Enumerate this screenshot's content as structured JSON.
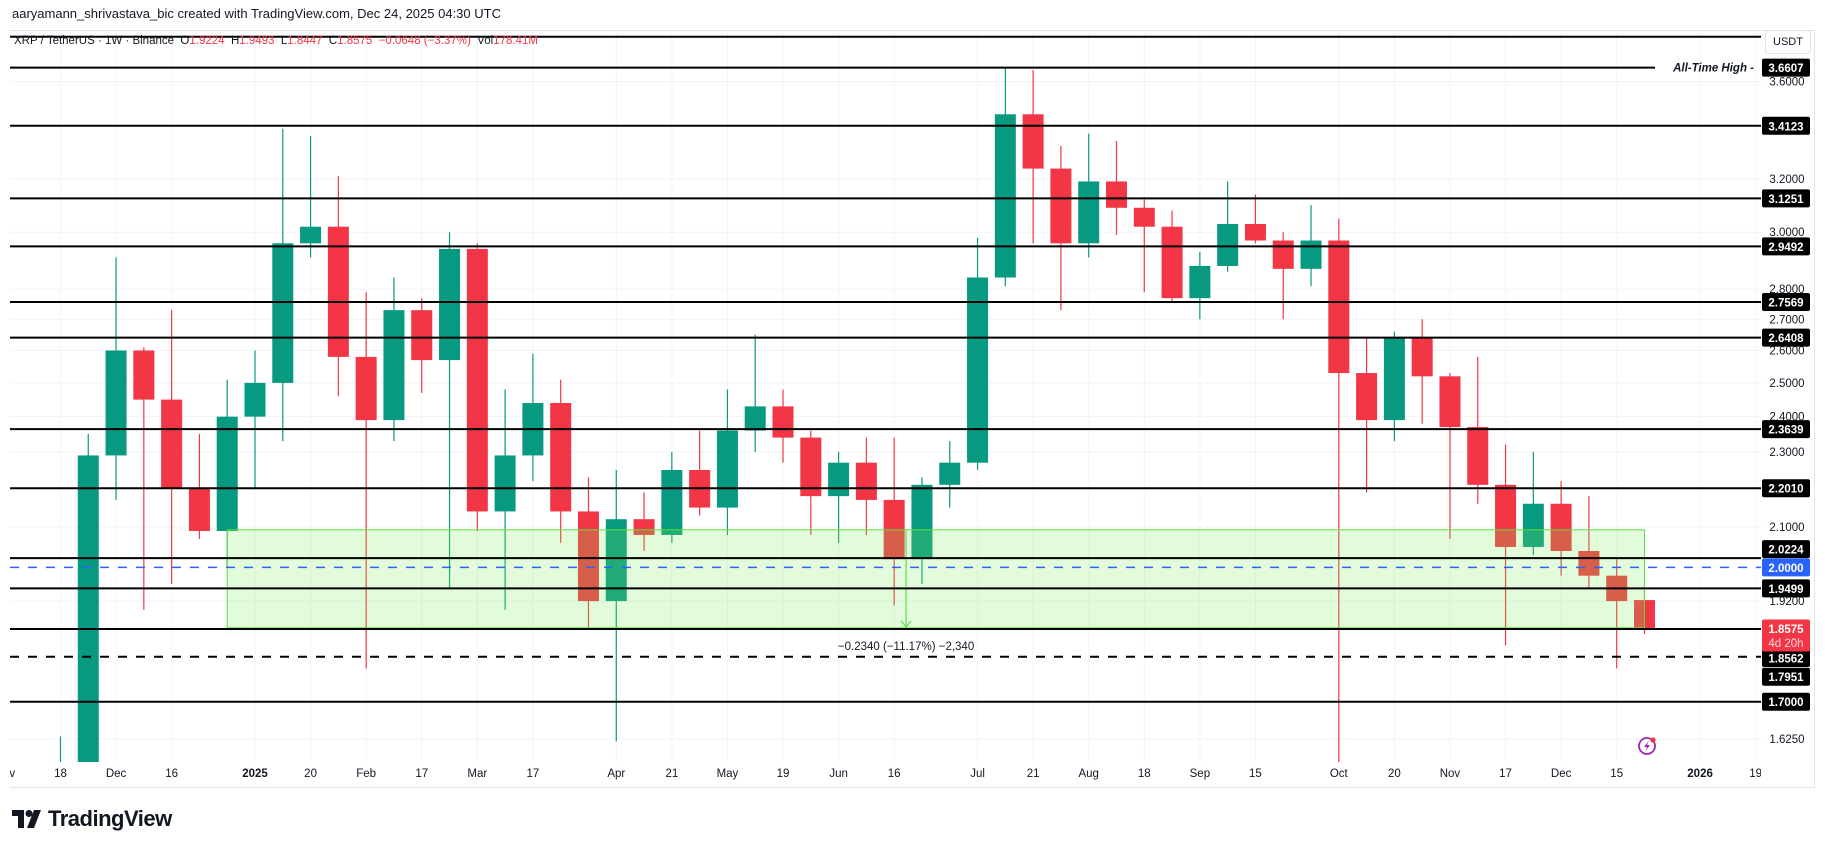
{
  "attribution": "aaryamann_shrivastava_bic created with TradingView.com, Dec 24, 2025 04:30 UTC",
  "legend": {
    "symbol": "XRP / TetherUS · 1W · Binance",
    "o_label": "O",
    "o": "1.9224",
    "h_label": "H",
    "h": "1.9493",
    "l_label": "L",
    "l": "1.8447",
    "c_label": "C",
    "c": "1.8575",
    "change": "−0.0648 (−3.37%)",
    "vol_label": "Vol",
    "vol": "178.41M"
  },
  "currency": "USDT",
  "logo_text": "TradingView",
  "colors": {
    "up": "#089981",
    "down": "#F23645",
    "zone_fill": "rgba(120,235,90,0.22)",
    "zone_border": "#5ee03a",
    "blue_level": "#2962FF",
    "price_label": "#F23645"
  },
  "chart_data": {
    "type": "candlestick",
    "interval": "1W",
    "y_scale": "log",
    "grid": true,
    "ylim": [
      1.588,
      3.8
    ],
    "y_ticks": [
      "3.6000",
      "3.2000",
      "3.0000",
      "2.8000",
      "2.7000",
      "2.6000",
      "2.5000",
      "2.4000",
      "2.3000",
      "2.1000",
      "1.9200",
      "1.6250"
    ],
    "x_ticks": [
      {
        "date": "2024-11-04",
        "label": "Nov"
      },
      {
        "date": "2024-11-18",
        "label": "18"
      },
      {
        "date": "2024-12-02",
        "label": "Dec"
      },
      {
        "date": "2024-12-16",
        "label": "16"
      },
      {
        "date": "2025-01-06",
        "label": "2025",
        "bold": true
      },
      {
        "date": "2025-01-20",
        "label": "20"
      },
      {
        "date": "2025-02-03",
        "label": "Feb"
      },
      {
        "date": "2025-02-17",
        "label": "17"
      },
      {
        "date": "2025-03-03",
        "label": "Mar"
      },
      {
        "date": "2025-03-17",
        "label": "17"
      },
      {
        "date": "2025-04-07",
        "label": "Apr"
      },
      {
        "date": "2025-04-21",
        "label": "21"
      },
      {
        "date": "2025-05-05",
        "label": "May"
      },
      {
        "date": "2025-05-19",
        "label": "19"
      },
      {
        "date": "2025-06-02",
        "label": "Jun"
      },
      {
        "date": "2025-06-16",
        "label": "16"
      },
      {
        "date": "2025-07-07",
        "label": "Jul"
      },
      {
        "date": "2025-07-21",
        "label": "21"
      },
      {
        "date": "2025-08-04",
        "label": "Aug"
      },
      {
        "date": "2025-08-18",
        "label": "18"
      },
      {
        "date": "2025-09-01",
        "label": "Sep"
      },
      {
        "date": "2025-09-15",
        "label": "15"
      },
      {
        "date": "2025-10-06",
        "label": "Oct"
      },
      {
        "date": "2025-10-20",
        "label": "20"
      },
      {
        "date": "2025-11-03",
        "label": "Nov"
      },
      {
        "date": "2025-11-17",
        "label": "17"
      },
      {
        "date": "2025-12-01",
        "label": "Dec"
      },
      {
        "date": "2025-12-15",
        "label": "15"
      },
      {
        "date": "2026-01-05",
        "label": "2026",
        "bold": true
      },
      {
        "date": "2026-01-19",
        "label": "19"
      }
    ],
    "candles": [
      {
        "date": "2024-11-18",
        "o": 1.13,
        "h": 1.63,
        "l": 1.05,
        "c": 1.44
      },
      {
        "date": "2024-11-25",
        "o": 1.44,
        "h": 2.35,
        "l": 1.27,
        "c": 2.29
      },
      {
        "date": "2024-12-02",
        "o": 2.29,
        "h": 2.91,
        "l": 2.17,
        "c": 2.6
      },
      {
        "date": "2024-12-09",
        "o": 2.6,
        "h": 2.61,
        "l": 1.9,
        "c": 2.45
      },
      {
        "date": "2024-12-16",
        "o": 2.45,
        "h": 2.73,
        "l": 1.96,
        "c": 2.2
      },
      {
        "date": "2024-12-23",
        "o": 2.2,
        "h": 2.35,
        "l": 2.07,
        "c": 2.09
      },
      {
        "date": "2024-12-30",
        "o": 2.09,
        "h": 2.51,
        "l": 2.0,
        "c": 2.4
      },
      {
        "date": "2025-01-06",
        "o": 2.4,
        "h": 2.6,
        "l": 2.2,
        "c": 2.5
      },
      {
        "date": "2025-01-13",
        "o": 2.5,
        "h": 3.4,
        "l": 2.33,
        "c": 2.96
      },
      {
        "date": "2025-01-20",
        "o": 2.96,
        "h": 3.37,
        "l": 2.91,
        "c": 3.02
      },
      {
        "date": "2025-01-27",
        "o": 3.02,
        "h": 3.21,
        "l": 2.46,
        "c": 2.58
      },
      {
        "date": "2025-02-03",
        "o": 2.58,
        "h": 2.79,
        "l": 1.77,
        "c": 2.39
      },
      {
        "date": "2025-02-10",
        "o": 2.39,
        "h": 2.84,
        "l": 2.33,
        "c": 2.73
      },
      {
        "date": "2025-02-17",
        "o": 2.73,
        "h": 2.77,
        "l": 2.47,
        "c": 2.57
      },
      {
        "date": "2025-02-24",
        "o": 2.57,
        "h": 3.0,
        "l": 1.95,
        "c": 2.94
      },
      {
        "date": "2025-03-03",
        "o": 2.94,
        "h": 2.96,
        "l": 2.09,
        "c": 2.14
      },
      {
        "date": "2025-03-10",
        "o": 2.14,
        "h": 2.48,
        "l": 1.9,
        "c": 2.29
      },
      {
        "date": "2025-03-17",
        "o": 2.29,
        "h": 2.59,
        "l": 2.22,
        "c": 2.44
      },
      {
        "date": "2025-03-24",
        "o": 2.44,
        "h": 2.51,
        "l": 2.06,
        "c": 2.14
      },
      {
        "date": "2025-03-31",
        "o": 2.14,
        "h": 2.23,
        "l": 1.86,
        "c": 1.92
      },
      {
        "date": "2025-04-07",
        "o": 1.92,
        "h": 2.25,
        "l": 1.62,
        "c": 2.12
      },
      {
        "date": "2025-04-14",
        "o": 2.12,
        "h": 2.19,
        "l": 2.04,
        "c": 2.08
      },
      {
        "date": "2025-04-21",
        "o": 2.08,
        "h": 2.3,
        "l": 2.06,
        "c": 2.25
      },
      {
        "date": "2025-04-28",
        "o": 2.25,
        "h": 2.36,
        "l": 2.13,
        "c": 2.15
      },
      {
        "date": "2025-05-05",
        "o": 2.15,
        "h": 2.48,
        "l": 2.08,
        "c": 2.36
      },
      {
        "date": "2025-05-12",
        "o": 2.36,
        "h": 2.65,
        "l": 2.3,
        "c": 2.43
      },
      {
        "date": "2025-05-19",
        "o": 2.43,
        "h": 2.48,
        "l": 2.27,
        "c": 2.34
      },
      {
        "date": "2025-05-26",
        "o": 2.34,
        "h": 2.36,
        "l": 2.08,
        "c": 2.18
      },
      {
        "date": "2025-06-02",
        "o": 2.18,
        "h": 2.3,
        "l": 2.06,
        "c": 2.27
      },
      {
        "date": "2025-06-09",
        "o": 2.27,
        "h": 2.34,
        "l": 2.08,
        "c": 2.17
      },
      {
        "date": "2025-06-16",
        "o": 2.17,
        "h": 2.34,
        "l": 1.91,
        "c": 2.02
      },
      {
        "date": "2025-06-23",
        "o": 2.02,
        "h": 2.23,
        "l": 1.96,
        "c": 2.21
      },
      {
        "date": "2025-06-30",
        "o": 2.21,
        "h": 2.33,
        "l": 2.15,
        "c": 2.27
      },
      {
        "date": "2025-07-07",
        "o": 2.27,
        "h": 2.98,
        "l": 2.25,
        "c": 2.84
      },
      {
        "date": "2025-07-14",
        "o": 2.84,
        "h": 3.66,
        "l": 2.81,
        "c": 3.46
      },
      {
        "date": "2025-07-21",
        "o": 3.46,
        "h": 3.65,
        "l": 2.96,
        "c": 3.24
      },
      {
        "date": "2025-07-28",
        "o": 3.24,
        "h": 3.33,
        "l": 2.73,
        "c": 2.96
      },
      {
        "date": "2025-08-04",
        "o": 2.96,
        "h": 3.38,
        "l": 2.91,
        "c": 3.19
      },
      {
        "date": "2025-08-11",
        "o": 3.19,
        "h": 3.35,
        "l": 2.99,
        "c": 3.09
      },
      {
        "date": "2025-08-18",
        "o": 3.09,
        "h": 3.13,
        "l": 2.79,
        "c": 3.02
      },
      {
        "date": "2025-08-25",
        "o": 3.02,
        "h": 3.08,
        "l": 2.76,
        "c": 2.77
      },
      {
        "date": "2025-09-01",
        "o": 2.77,
        "h": 2.93,
        "l": 2.7,
        "c": 2.88
      },
      {
        "date": "2025-09-08",
        "o": 2.88,
        "h": 3.19,
        "l": 2.86,
        "c": 3.03
      },
      {
        "date": "2025-09-15",
        "o": 3.03,
        "h": 3.14,
        "l": 2.96,
        "c": 2.97
      },
      {
        "date": "2025-09-22",
        "o": 2.97,
        "h": 3.0,
        "l": 2.7,
        "c": 2.87
      },
      {
        "date": "2025-09-29",
        "o": 2.87,
        "h": 3.1,
        "l": 2.81,
        "c": 2.97
      },
      {
        "date": "2025-10-06",
        "o": 2.97,
        "h": 3.05,
        "l": 1.58,
        "c": 2.53
      },
      {
        "date": "2025-10-13",
        "o": 2.53,
        "h": 2.64,
        "l": 2.19,
        "c": 2.39
      },
      {
        "date": "2025-10-20",
        "o": 2.39,
        "h": 2.66,
        "l": 2.33,
        "c": 2.64
      },
      {
        "date": "2025-10-27",
        "o": 2.64,
        "h": 2.7,
        "l": 2.38,
        "c": 2.52
      },
      {
        "date": "2025-11-03",
        "o": 2.52,
        "h": 2.53,
        "l": 2.07,
        "c": 2.37
      },
      {
        "date": "2025-11-10",
        "o": 2.37,
        "h": 2.58,
        "l": 2.16,
        "c": 2.21
      },
      {
        "date": "2025-11-17",
        "o": 2.21,
        "h": 2.32,
        "l": 1.82,
        "c": 2.05
      },
      {
        "date": "2025-11-24",
        "o": 2.05,
        "h": 2.3,
        "l": 2.03,
        "c": 2.16
      },
      {
        "date": "2025-12-01",
        "o": 2.16,
        "h": 2.22,
        "l": 1.98,
        "c": 2.04
      },
      {
        "date": "2025-12-08",
        "o": 2.04,
        "h": 2.18,
        "l": 1.95,
        "c": 1.98
      },
      {
        "date": "2025-12-15",
        "o": 1.98,
        "h": 2.02,
        "l": 1.77,
        "c": 1.92
      },
      {
        "date": "2025-12-22",
        "o": 1.9224,
        "h": 1.9493,
        "l": 1.8447,
        "c": 1.8575
      }
    ],
    "levels": [
      {
        "price": 3.8,
        "label": "",
        "style": "solid"
      },
      {
        "price": 3.6607,
        "label": "3.6607",
        "style": "solid",
        "annotation": "All-Time High"
      },
      {
        "price": 3.4123,
        "label": "3.4123",
        "style": "solid"
      },
      {
        "price": 3.1251,
        "label": "3.1251",
        "style": "solid"
      },
      {
        "price": 2.9492,
        "label": "2.9492",
        "style": "solid"
      },
      {
        "price": 2.7569,
        "label": "2.7569",
        "style": "solid"
      },
      {
        "price": 2.6408,
        "label": "2.6408",
        "style": "solid"
      },
      {
        "price": 2.3639,
        "label": "2.3639",
        "style": "solid"
      },
      {
        "price": 2.201,
        "label": "2.2010",
        "style": "solid"
      },
      {
        "price": 2.0224,
        "label": "2.0224",
        "style": "solid"
      },
      {
        "price": 2.0,
        "label": "2.0000",
        "style": "dashed-blue"
      },
      {
        "price": 1.9499,
        "label": "1.9499",
        "style": "solid"
      },
      {
        "price": 1.8562,
        "label": "1.8562",
        "style": "solid"
      },
      {
        "price": 1.7951,
        "label": "1.7951",
        "style": "dashed"
      },
      {
        "price": 1.7,
        "label": "1.7000",
        "style": "solid"
      }
    ],
    "last_price": {
      "price": 1.8575,
      "label": "1.8575",
      "countdown": "4d 20h"
    },
    "zone": {
      "from": "2024-12-30",
      "to": "2025-12-22",
      "top": 2.093,
      "bottom": 1.859
    },
    "measure": {
      "date": "2025-06-19",
      "from": 2.093,
      "to": 1.859,
      "label": "−0.2340 (−11.17%) −2,340"
    }
  }
}
